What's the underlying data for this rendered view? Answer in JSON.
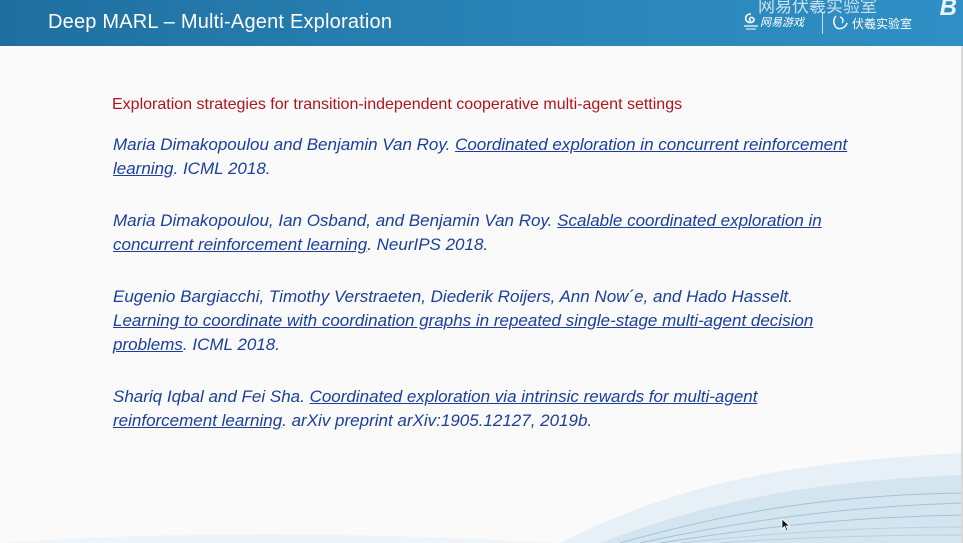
{
  "header": {
    "title": "Deep MARL – Multi-Agent Exploration",
    "logos": {
      "top_text": "网易伏羲实验室",
      "top_mark": "B",
      "left_logo_text": "网易游戏",
      "right_logo_text": "伏羲实验室"
    }
  },
  "subtitle": "Exploration strategies for transition-independent cooperative multi-agent settings",
  "references": [
    {
      "authors": "Maria Dimakopoulou and Benjamin Van Roy. ",
      "title": "Coordinated exploration in concurrent reinforcement learning",
      "venue": ". ICML 2018."
    },
    {
      "authors": "Maria Dimakopoulou, Ian Osband, and Benjamin Van Roy. ",
      "title": "Scalable coordinated exploration in concurrent reinforcement learning",
      "venue": ". NeurIPS 2018."
    },
    {
      "authors": "Eugenio Bargiacchi, Timothy Verstraeten, Diederik Roijers, Ann Now´e, and Hado Hasselt. ",
      "title": "Learning to coordinate with coordination graphs in repeated single-stage multi-agent decision problems",
      "venue": ". ICML 2018."
    },
    {
      "authors": "Shariq Iqbal and Fei Sha. ",
      "title": "Coordinated exploration via intrinsic rewards for multi-agent reinforcement learning",
      "venue": ". arXiv preprint arXiv:1905.12127, 2019b."
    }
  ],
  "colors": {
    "header_bg": "#2a84b7",
    "subtitle": "#b0151b",
    "reference_text": "#1a3f9c"
  }
}
